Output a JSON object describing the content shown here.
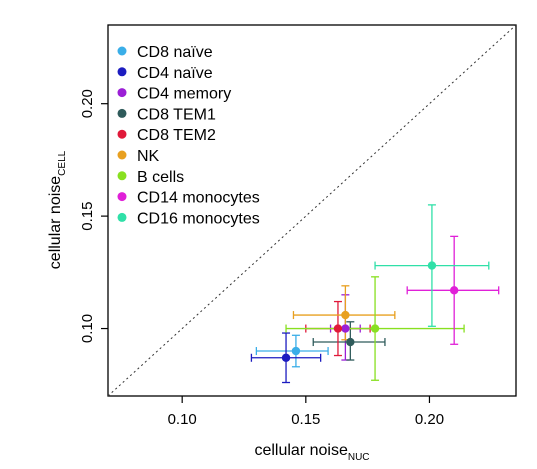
{
  "chart_data": {
    "type": "scatter",
    "title": "",
    "xlabel": {
      "main": "cellular noise",
      "sub": "NUC"
    },
    "ylabel": {
      "main": "cellular noise",
      "sub": "CELL"
    },
    "xlim": [
      0.07,
      0.235
    ],
    "ylim": [
      0.07,
      0.235
    ],
    "x_ticks": [
      0.1,
      0.15,
      0.2
    ],
    "x_tick_labels": [
      "0.10",
      "0.15",
      "0.20"
    ],
    "y_ticks": [
      0.1,
      0.15,
      0.2
    ],
    "y_tick_labels": [
      "0.10",
      "0.15",
      "0.20"
    ],
    "reference_line": "y = x (dotted)",
    "grid": false,
    "legend_position": "top-left",
    "series": [
      {
        "name": "CD8 naïve",
        "color": "#3AAEE8",
        "x": 0.146,
        "y": 0.09,
        "x_err": [
          0.13,
          0.159
        ],
        "y_err": [
          0.083,
          0.097
        ]
      },
      {
        "name": "CD4 naïve",
        "color": "#1C1CC0",
        "x": 0.142,
        "y": 0.087,
        "x_err": [
          0.128,
          0.156
        ],
        "y_err": [
          0.076,
          0.098
        ]
      },
      {
        "name": "CD4 memory",
        "color": "#9B1FD6",
        "x": 0.166,
        "y": 0.1,
        "x_err": [
          0.16,
          0.172
        ],
        "y_err": [
          0.086,
          0.115
        ]
      },
      {
        "name": "CD8 TEM1",
        "color": "#2F5B5B",
        "x": 0.168,
        "y": 0.094,
        "x_err": [
          0.153,
          0.182
        ],
        "y_err": [
          0.086,
          0.103
        ]
      },
      {
        "name": "CD8 TEM2",
        "color": "#E0193A",
        "x": 0.163,
        "y": 0.1,
        "x_err": [
          0.15,
          0.176
        ],
        "y_err": [
          0.088,
          0.112
        ]
      },
      {
        "name": "NK",
        "color": "#E8A020",
        "x": 0.166,
        "y": 0.106,
        "x_err": [
          0.145,
          0.186
        ],
        "y_err": [
          0.095,
          0.119
        ]
      },
      {
        "name": "B cells",
        "color": "#88E020",
        "x": 0.178,
        "y": 0.1,
        "x_err": [
          0.142,
          0.214
        ],
        "y_err": [
          0.077,
          0.123
        ]
      },
      {
        "name": "CD14 monocytes",
        "color": "#E020D8",
        "x": 0.21,
        "y": 0.117,
        "x_err": [
          0.191,
          0.228
        ],
        "y_err": [
          0.093,
          0.141
        ]
      },
      {
        "name": "CD16 monocytes",
        "color": "#30E0A8",
        "x": 0.201,
        "y": 0.128,
        "x_err": [
          0.178,
          0.224
        ],
        "y_err": [
          0.101,
          0.155
        ]
      }
    ]
  }
}
